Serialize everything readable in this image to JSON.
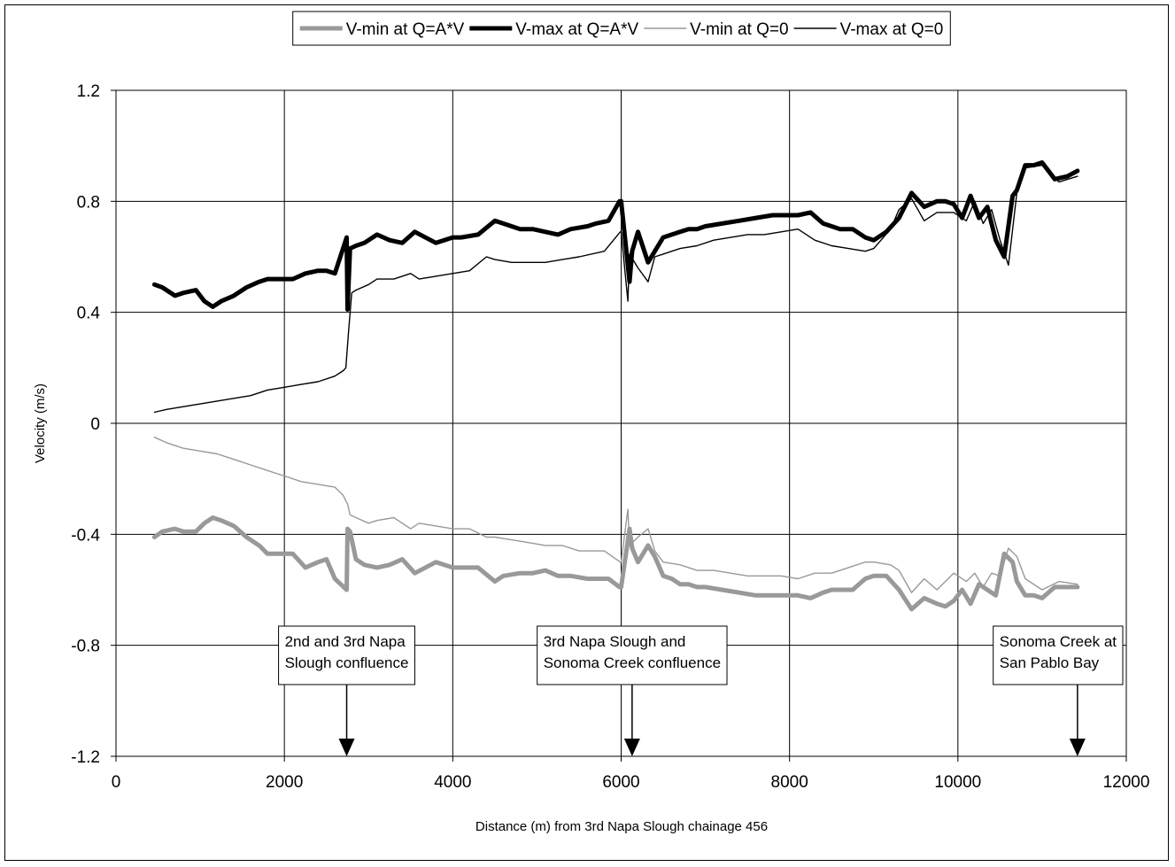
{
  "chart_data": {
    "type": "line",
    "title": "",
    "xlabel": "Distance (m) from 3rd Napa Slough chainage 456",
    "ylabel": "Velocity (m/s)",
    "xlim": [
      0,
      12000
    ],
    "ylim": [
      -1.2,
      1.2
    ],
    "xticks": [
      0,
      2000,
      4000,
      6000,
      8000,
      10000,
      12000
    ],
    "yticks": [
      -1.2,
      -0.8,
      -0.4,
      0,
      0.4,
      0.8,
      1.2
    ],
    "xtick_labels": [
      "0",
      "2000",
      "4000",
      "6000",
      "8000",
      "10000",
      "12000"
    ],
    "ytick_labels": [
      "-1.2",
      "-0.8",
      "-0.4",
      "0",
      "0.4",
      "0.8",
      "1.2"
    ],
    "grid": true,
    "legend_position": "top",
    "series": [
      {
        "name": "V-min at Q=A*V",
        "color": "#999999",
        "style": "thick",
        "x": [
          456,
          550,
          700,
          800,
          950,
          1050,
          1150,
          1250,
          1400,
          1550,
          1700,
          1800,
          1950,
          2100,
          2250,
          2400,
          2500,
          2600,
          2740,
          2750,
          2780,
          2850,
          2950,
          3100,
          3250,
          3400,
          3550,
          3800,
          4000,
          4100,
          4300,
          4500,
          4600,
          4800,
          4950,
          5100,
          5250,
          5400,
          5600,
          5700,
          5850,
          5980,
          6000,
          6100,
          6130,
          6200,
          6320,
          6400,
          6500,
          6600,
          6700,
          6800,
          6900,
          7000,
          7200,
          7400,
          7600,
          7800,
          8000,
          8100,
          8250,
          8400,
          8500,
          8600,
          8750,
          8900,
          9000,
          9150,
          9300,
          9450,
          9600,
          9750,
          9850,
          9950,
          10050,
          10150,
          10250,
          10350,
          10450,
          10550,
          10650,
          10700,
          10800,
          10900,
          11000,
          11150,
          11300,
          11420
        ],
        "y": [
          -0.41,
          -0.39,
          -0.38,
          -0.39,
          -0.39,
          -0.36,
          -0.34,
          -0.35,
          -0.37,
          -0.41,
          -0.44,
          -0.47,
          -0.47,
          -0.47,
          -0.52,
          -0.5,
          -0.49,
          -0.56,
          -0.6,
          -0.38,
          -0.39,
          -0.49,
          -0.51,
          -0.52,
          -0.51,
          -0.49,
          -0.54,
          -0.5,
          -0.52,
          -0.52,
          -0.52,
          -0.57,
          -0.55,
          -0.54,
          -0.54,
          -0.53,
          -0.55,
          -0.55,
          -0.56,
          -0.56,
          -0.56,
          -0.59,
          -0.59,
          -0.38,
          -0.45,
          -0.5,
          -0.44,
          -0.48,
          -0.55,
          -0.56,
          -0.58,
          -0.58,
          -0.59,
          -0.59,
          -0.6,
          -0.61,
          -0.62,
          -0.62,
          -0.62,
          -0.62,
          -0.63,
          -0.61,
          -0.6,
          -0.6,
          -0.6,
          -0.56,
          -0.55,
          -0.55,
          -0.6,
          -0.67,
          -0.63,
          -0.65,
          -0.66,
          -0.64,
          -0.6,
          -0.65,
          -0.58,
          -0.6,
          -0.62,
          -0.47,
          -0.5,
          -0.57,
          -0.62,
          -0.62,
          -0.63,
          -0.59,
          -0.59,
          -0.59
        ]
      },
      {
        "name": "V-max at Q=A*V",
        "color": "#000000",
        "style": "thick",
        "x": [
          456,
          550,
          700,
          800,
          950,
          1050,
          1150,
          1250,
          1400,
          1550,
          1700,
          1800,
          1950,
          2100,
          2250,
          2400,
          2500,
          2600,
          2740,
          2750,
          2780,
          2850,
          2950,
          3100,
          3250,
          3400,
          3550,
          3800,
          4000,
          4100,
          4300,
          4500,
          4600,
          4800,
          4950,
          5100,
          5250,
          5400,
          5600,
          5700,
          5850,
          5980,
          6000,
          6100,
          6130,
          6200,
          6320,
          6400,
          6500,
          6600,
          6700,
          6800,
          6900,
          7000,
          7200,
          7400,
          7600,
          7800,
          8000,
          8100,
          8250,
          8400,
          8500,
          8600,
          8750,
          8900,
          9000,
          9150,
          9300,
          9450,
          9600,
          9750,
          9850,
          9950,
          10050,
          10150,
          10250,
          10350,
          10450,
          10550,
          10650,
          10700,
          10800,
          10900,
          11000,
          11150,
          11300,
          11420
        ],
        "y": [
          0.5,
          0.49,
          0.46,
          0.47,
          0.48,
          0.44,
          0.42,
          0.44,
          0.46,
          0.49,
          0.51,
          0.52,
          0.52,
          0.52,
          0.54,
          0.55,
          0.55,
          0.54,
          0.67,
          0.41,
          0.63,
          0.64,
          0.65,
          0.68,
          0.66,
          0.65,
          0.69,
          0.65,
          0.67,
          0.67,
          0.68,
          0.73,
          0.72,
          0.7,
          0.7,
          0.69,
          0.68,
          0.7,
          0.71,
          0.72,
          0.73,
          0.8,
          0.8,
          0.51,
          0.62,
          0.69,
          0.58,
          0.62,
          0.67,
          0.68,
          0.69,
          0.7,
          0.7,
          0.71,
          0.72,
          0.73,
          0.74,
          0.75,
          0.75,
          0.75,
          0.76,
          0.72,
          0.71,
          0.7,
          0.7,
          0.67,
          0.66,
          0.69,
          0.74,
          0.83,
          0.78,
          0.8,
          0.8,
          0.79,
          0.74,
          0.82,
          0.74,
          0.78,
          0.66,
          0.6,
          0.82,
          0.84,
          0.93,
          0.93,
          0.94,
          0.88,
          0.89,
          0.91
        ]
      },
      {
        "name": "V-min at Q=0",
        "color": "#999999",
        "style": "thin",
        "x": [
          456,
          600,
          800,
          1000,
          1200,
          1400,
          1600,
          1800,
          2000,
          2200,
          2400,
          2600,
          2700,
          2730,
          2750,
          2780,
          2850,
          3000,
          3100,
          3300,
          3500,
          3600,
          3800,
          4000,
          4200,
          4400,
          4500,
          4700,
          4900,
          5100,
          5300,
          5500,
          5800,
          5990,
          6000,
          6080,
          6100,
          6200,
          6320,
          6400,
          6500,
          6700,
          6900,
          7100,
          7300,
          7500,
          7700,
          7900,
          8100,
          8300,
          8500,
          8700,
          8900,
          9000,
          9200,
          9300,
          9450,
          9600,
          9750,
          9950,
          10100,
          10200,
          10300,
          10400,
          10500,
          10600,
          10700,
          10800,
          11000,
          11200,
          11420
        ],
        "y": [
          -0.05,
          -0.07,
          -0.09,
          -0.1,
          -0.11,
          -0.13,
          -0.15,
          -0.17,
          -0.19,
          -0.21,
          -0.22,
          -0.23,
          -0.26,
          -0.28,
          -0.29,
          -0.33,
          -0.34,
          -0.36,
          -0.35,
          -0.34,
          -0.38,
          -0.36,
          -0.37,
          -0.38,
          -0.38,
          -0.41,
          -0.41,
          -0.42,
          -0.43,
          -0.44,
          -0.44,
          -0.46,
          -0.46,
          -0.5,
          -0.5,
          -0.31,
          -0.44,
          -0.41,
          -0.38,
          -0.46,
          -0.5,
          -0.51,
          -0.53,
          -0.53,
          -0.54,
          -0.55,
          -0.55,
          -0.55,
          -0.56,
          -0.54,
          -0.54,
          -0.52,
          -0.5,
          -0.5,
          -0.51,
          -0.53,
          -0.61,
          -0.56,
          -0.6,
          -0.54,
          -0.57,
          -0.54,
          -0.59,
          -0.54,
          -0.55,
          -0.45,
          -0.48,
          -0.56,
          -0.6,
          -0.57,
          -0.58
        ]
      },
      {
        "name": "V-max at Q=0",
        "color": "#000000",
        "style": "thin",
        "x": [
          456,
          600,
          800,
          1000,
          1200,
          1400,
          1600,
          1800,
          2000,
          2200,
          2400,
          2600,
          2700,
          2730,
          2760,
          2800,
          2850,
          3000,
          3100,
          3300,
          3500,
          3600,
          3800,
          4000,
          4200,
          4400,
          4500,
          4700,
          4900,
          5100,
          5300,
          5500,
          5800,
          5990,
          6000,
          6080,
          6100,
          6200,
          6320,
          6400,
          6500,
          6700,
          6900,
          7100,
          7300,
          7500,
          7700,
          7900,
          8100,
          8300,
          8500,
          8700,
          8900,
          9000,
          9200,
          9300,
          9450,
          9600,
          9750,
          9950,
          10100,
          10200,
          10300,
          10400,
          10500,
          10600,
          10700,
          10800,
          11000,
          11200,
          11420
        ],
        "y": [
          0.04,
          0.05,
          0.06,
          0.07,
          0.08,
          0.09,
          0.1,
          0.12,
          0.13,
          0.14,
          0.15,
          0.17,
          0.19,
          0.2,
          0.32,
          0.47,
          0.48,
          0.5,
          0.52,
          0.52,
          0.54,
          0.52,
          0.53,
          0.54,
          0.55,
          0.6,
          0.59,
          0.58,
          0.58,
          0.58,
          0.59,
          0.6,
          0.62,
          0.69,
          0.69,
          0.44,
          0.61,
          0.56,
          0.51,
          0.6,
          0.61,
          0.63,
          0.64,
          0.66,
          0.67,
          0.68,
          0.68,
          0.69,
          0.7,
          0.66,
          0.64,
          0.63,
          0.62,
          0.63,
          0.7,
          0.77,
          0.81,
          0.73,
          0.76,
          0.76,
          0.73,
          0.8,
          0.72,
          0.77,
          0.66,
          0.57,
          0.83,
          0.92,
          0.93,
          0.87,
          0.89
        ]
      }
    ],
    "annotations": [
      {
        "lines": [
          "2nd and 3rd Napa",
          "Slough confluence"
        ],
        "arrow_x": 2740
      },
      {
        "lines": [
          "3rd Napa Slough and",
          "Sonoma Creek confluence"
        ],
        "arrow_x": 6130
      },
      {
        "lines": [
          "Sonoma Creek at",
          "San Pablo Bay"
        ],
        "arrow_x": 11420
      }
    ]
  }
}
